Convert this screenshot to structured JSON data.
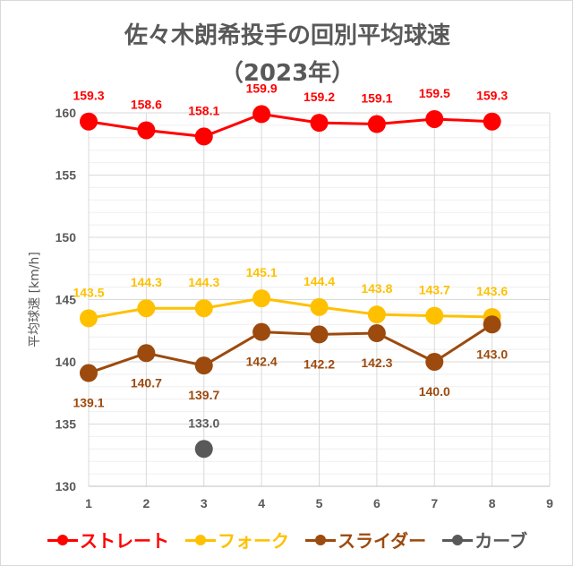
{
  "chart_data": {
    "type": "line",
    "title": "佐々木朗希投手の回別平均球速",
    "subtitle": "（2023年）",
    "xlabel": "",
    "ylabel": "平均球速 [km/h]",
    "xlim": [
      1,
      9
    ],
    "ylim": [
      130,
      160
    ],
    "x_ticks": [
      "1",
      "2",
      "3",
      "4",
      "5",
      "6",
      "7",
      "8",
      "9"
    ],
    "y_ticks": [
      "130",
      "135",
      "140",
      "145",
      "150",
      "155",
      "160"
    ],
    "grid": {
      "major": true,
      "minor": true
    },
    "legend_position": "bottom",
    "series": [
      {
        "name": "ストレート",
        "color": "#ff0000",
        "x": [
          1,
          2,
          3,
          4,
          5,
          6,
          7,
          8
        ],
        "values": [
          159.3,
          158.6,
          158.1,
          159.9,
          159.2,
          159.1,
          159.5,
          159.3
        ],
        "labels": [
          "159.3",
          "158.6",
          "158.1",
          "159.9",
          "159.2",
          "159.1",
          "159.5",
          "159.3"
        ],
        "label_pos": "above"
      },
      {
        "name": "フォーク",
        "color": "#ffc000",
        "x": [
          1,
          2,
          3,
          4,
          5,
          6,
          7,
          8
        ],
        "values": [
          143.5,
          144.3,
          144.3,
          145.1,
          144.4,
          143.8,
          143.7,
          143.6
        ],
        "labels": [
          "143.5",
          "144.3",
          "144.3",
          "145.1",
          "144.4",
          "143.8",
          "143.7",
          "143.6"
        ],
        "label_pos": "above"
      },
      {
        "name": "スライダー",
        "color": "#9c4a0e",
        "x": [
          1,
          2,
          3,
          4,
          5,
          6,
          7,
          8
        ],
        "values": [
          139.1,
          140.7,
          139.7,
          142.4,
          142.2,
          142.3,
          140.0,
          143.0
        ],
        "labels": [
          "139.1",
          "140.7",
          "139.7",
          "142.4",
          "142.2",
          "142.3",
          "140.0",
          "143.0"
        ],
        "label_pos": "below"
      },
      {
        "name": "カーブ",
        "color": "#595959",
        "x": [
          3
        ],
        "values": [
          133.0
        ],
        "labels": [
          "133.0"
        ],
        "label_pos": "above"
      }
    ]
  }
}
